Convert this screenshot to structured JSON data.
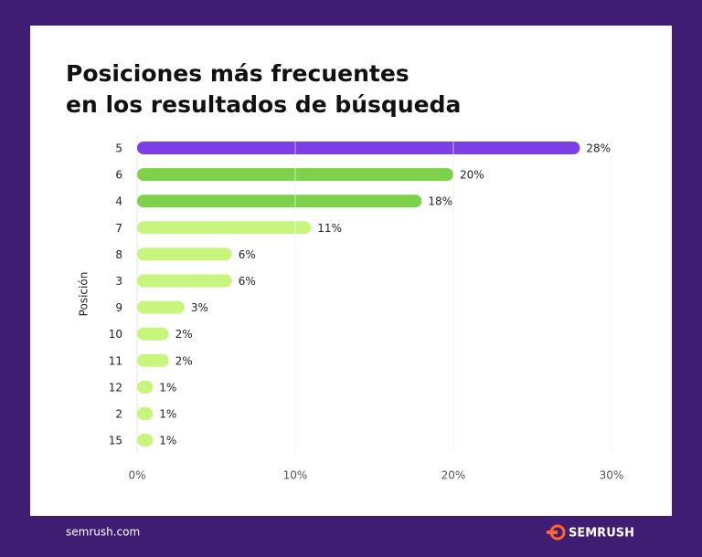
{
  "chart_data": {
    "type": "barh",
    "title": [
      "Posiciones más frecuentes",
      "en los resultados de búsqueda"
    ],
    "y_label": "Posición",
    "categories": [
      "5",
      "6",
      "4",
      "7",
      "8",
      "3",
      "9",
      "10",
      "11",
      "12",
      "2",
      "15"
    ],
    "values": [
      28,
      20,
      18,
      11,
      6,
      6,
      3,
      2,
      2,
      1,
      1,
      1
    ],
    "value_labels": [
      "28%",
      "20%",
      "18%",
      "11%",
      "6%",
      "6%",
      "3%",
      "2%",
      "2%",
      "1%",
      "1%",
      "1%"
    ],
    "colors": [
      "#7c3ee6",
      "#7ed14a",
      "#7ed14a",
      "#c7f57d",
      "#c7f57d",
      "#c7f57d",
      "#c7f57d",
      "#c7f57d",
      "#c7f57d",
      "#c7f57d",
      "#c7f57d",
      "#c7f57d"
    ],
    "xlim": [
      0,
      30
    ],
    "xticks": [
      {
        "value": 0,
        "label": "0%"
      },
      {
        "value": 10,
        "label": "10%"
      },
      {
        "value": 20,
        "label": "20%"
      },
      {
        "value": 30,
        "label": "30%"
      }
    ],
    "grid": true
  },
  "footer": {
    "site": "semrush.com",
    "brand": "SEMRUSH"
  }
}
